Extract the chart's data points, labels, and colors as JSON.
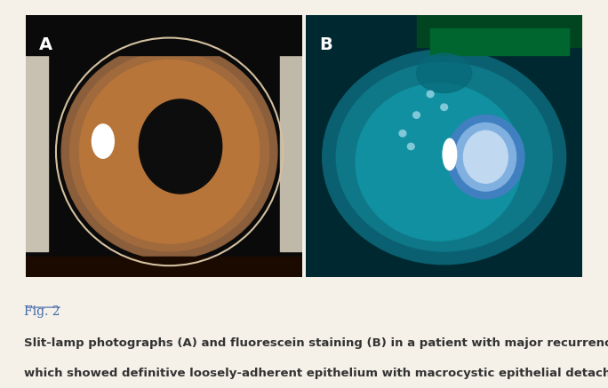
{
  "background_color": "#f5f0e8",
  "figure_label": "Fig. 2",
  "figure_label_color": "#4169aa",
  "caption_line1": "Slit-lamp photographs (A) and fluorescein staining (B) in a patient with major recurrence of erosions,",
  "caption_line2": "which showed definitive loosely-adherent epithelium with macrocystic epithelial detachment.",
  "caption_color": "#333333",
  "caption_fontsize": 9.5,
  "label_fontsize": 14,
  "label_color": "#ffffff",
  "panel_A_label": "A",
  "panel_B_label": "B",
  "fig_label_fontsize": 10
}
